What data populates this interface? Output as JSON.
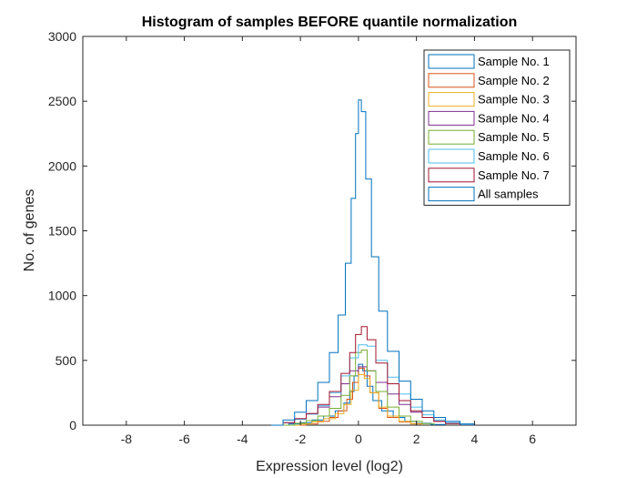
{
  "chart_data": {
    "type": "histogram",
    "title": "Histogram of samples BEFORE quantile normalization",
    "xlabel": "Expression level (log2)",
    "ylabel": "No. of genes",
    "xlim": [
      -9.5,
      7.5
    ],
    "ylim": [
      0,
      3000
    ],
    "xticks": [
      -8,
      -6,
      -4,
      -2,
      0,
      2,
      4,
      6
    ],
    "yticks": [
      0,
      500,
      1000,
      1500,
      2000,
      2500,
      3000
    ],
    "grid": false,
    "legend_position": "top-right",
    "series": [
      {
        "name": "Sample No. 1",
        "color": "#0072BD",
        "points": [
          [
            -2.8,
            0
          ],
          [
            -2.4,
            10
          ],
          [
            -2,
            20
          ],
          [
            -1.6,
            40
          ],
          [
            -1.2,
            70
          ],
          [
            -0.8,
            110
          ],
          [
            -0.5,
            170
          ],
          [
            -0.3,
            260
          ],
          [
            -0.15,
            380
          ],
          [
            0,
            470
          ],
          [
            0.15,
            420
          ],
          [
            0.3,
            300
          ],
          [
            0.5,
            190
          ],
          [
            0.8,
            110
          ],
          [
            1.2,
            60
          ],
          [
            1.6,
            30
          ],
          [
            2,
            15
          ],
          [
            2.5,
            5
          ],
          [
            3,
            0
          ]
        ]
      },
      {
        "name": "Sample No. 2",
        "color": "#D95319",
        "points": [
          [
            -2.2,
            0
          ],
          [
            -1.8,
            10
          ],
          [
            -1.4,
            30
          ],
          [
            -1,
            60
          ],
          [
            -0.7,
            110
          ],
          [
            -0.4,
            200
          ],
          [
            -0.2,
            330
          ],
          [
            0,
            440
          ],
          [
            0.2,
            380
          ],
          [
            0.4,
            250
          ],
          [
            0.7,
            130
          ],
          [
            1,
            60
          ],
          [
            1.4,
            25
          ],
          [
            1.8,
            10
          ],
          [
            2.2,
            0
          ]
        ]
      },
      {
        "name": "Sample No. 3",
        "color": "#EDB120",
        "points": [
          [
            -2.4,
            0
          ],
          [
            -2,
            10
          ],
          [
            -1.6,
            25
          ],
          [
            -1.2,
            50
          ],
          [
            -0.8,
            90
          ],
          [
            -0.5,
            160
          ],
          [
            -0.25,
            270
          ],
          [
            0,
            390
          ],
          [
            0.2,
            360
          ],
          [
            0.4,
            250
          ],
          [
            0.7,
            140
          ],
          [
            1,
            70
          ],
          [
            1.4,
            30
          ],
          [
            1.8,
            12
          ],
          [
            2.2,
            0
          ]
        ]
      },
      {
        "name": "Sample No. 4",
        "color": "#7E2F8E",
        "points": [
          [
            -3,
            0
          ],
          [
            -2.6,
            20
          ],
          [
            -2.2,
            50
          ],
          [
            -1.8,
            90
          ],
          [
            -1.4,
            140
          ],
          [
            -1,
            220
          ],
          [
            -0.6,
            320
          ],
          [
            -0.3,
            420
          ],
          [
            0,
            450
          ],
          [
            0.3,
            420
          ],
          [
            0.6,
            330
          ],
          [
            1,
            240
          ],
          [
            1.4,
            160
          ],
          [
            1.8,
            100
          ],
          [
            2.2,
            60
          ],
          [
            2.6,
            30
          ],
          [
            3,
            15
          ],
          [
            3.5,
            5
          ],
          [
            4,
            0
          ]
        ]
      },
      {
        "name": "Sample No. 5",
        "color": "#77AC30",
        "points": [
          [
            -2.6,
            0
          ],
          [
            -2.2,
            15
          ],
          [
            -1.8,
            35
          ],
          [
            -1.4,
            70
          ],
          [
            -1,
            130
          ],
          [
            -0.6,
            230
          ],
          [
            -0.3,
            380
          ],
          [
            -0.1,
            560
          ],
          [
            0.1,
            580
          ],
          [
            0.3,
            420
          ],
          [
            0.6,
            260
          ],
          [
            1,
            140
          ],
          [
            1.4,
            70
          ],
          [
            1.8,
            30
          ],
          [
            2.2,
            12
          ],
          [
            2.6,
            0
          ]
        ]
      },
      {
        "name": "Sample No. 6",
        "color": "#4DBEEE",
        "points": [
          [
            -3,
            0
          ],
          [
            -2.6,
            20
          ],
          [
            -2.2,
            45
          ],
          [
            -1.8,
            85
          ],
          [
            -1.4,
            150
          ],
          [
            -1,
            250
          ],
          [
            -0.6,
            380
          ],
          [
            -0.3,
            520
          ],
          [
            0,
            620
          ],
          [
            0.3,
            610
          ],
          [
            0.6,
            500
          ],
          [
            1,
            370
          ],
          [
            1.4,
            240
          ],
          [
            1.8,
            140
          ],
          [
            2.2,
            80
          ],
          [
            2.6,
            40
          ],
          [
            3,
            20
          ],
          [
            3.5,
            5
          ],
          [
            4,
            0
          ]
        ]
      },
      {
        "name": "Sample No. 7",
        "color": "#A2142F",
        "points": [
          [
            -3,
            0
          ],
          [
            -2.6,
            20
          ],
          [
            -2.2,
            50
          ],
          [
            -1.8,
            90
          ],
          [
            -1.4,
            160
          ],
          [
            -1,
            260
          ],
          [
            -0.6,
            400
          ],
          [
            -0.3,
            560
          ],
          [
            -0.1,
            700
          ],
          [
            0.1,
            760
          ],
          [
            0.3,
            660
          ],
          [
            0.6,
            480
          ],
          [
            1,
            320
          ],
          [
            1.4,
            190
          ],
          [
            1.8,
            110
          ],
          [
            2.2,
            60
          ],
          [
            2.6,
            30
          ],
          [
            3,
            12
          ],
          [
            3.5,
            0
          ]
        ]
      },
      {
        "name": "All samples",
        "color": "#0072BD",
        "points": [
          [
            -3,
            0
          ],
          [
            -2.6,
            40
          ],
          [
            -2.2,
            100
          ],
          [
            -1.8,
            190
          ],
          [
            -1.4,
            330
          ],
          [
            -1,
            560
          ],
          [
            -0.7,
            850
          ],
          [
            -0.45,
            1250
          ],
          [
            -0.25,
            1750
          ],
          [
            -0.1,
            2250
          ],
          [
            0,
            2510
          ],
          [
            0.1,
            2420
          ],
          [
            0.25,
            1900
          ],
          [
            0.45,
            1300
          ],
          [
            0.7,
            880
          ],
          [
            1,
            570
          ],
          [
            1.4,
            340
          ],
          [
            1.8,
            200
          ],
          [
            2.2,
            110
          ],
          [
            2.6,
            60
          ],
          [
            3,
            30
          ],
          [
            3.5,
            10
          ],
          [
            4,
            0
          ]
        ]
      }
    ]
  }
}
